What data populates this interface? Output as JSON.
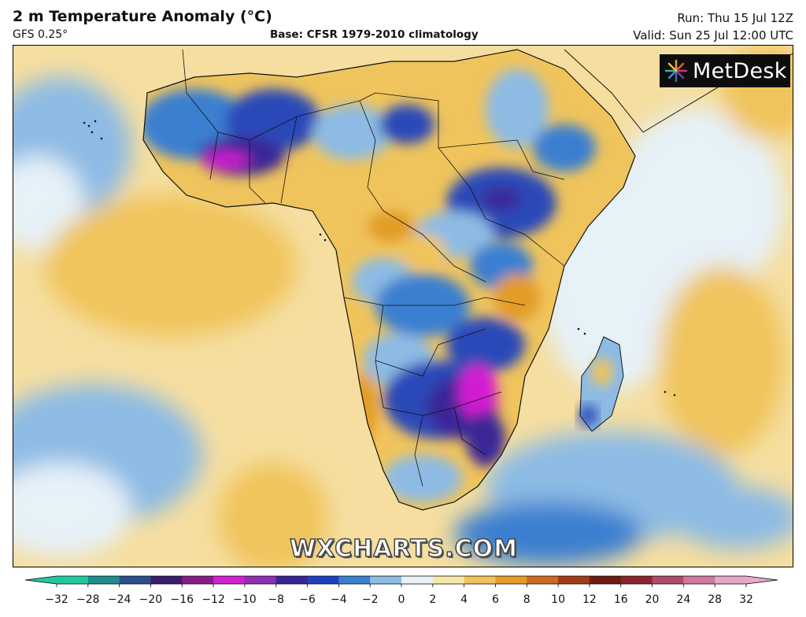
{
  "header": {
    "title": "2 m Temperature Anomaly (°C)",
    "model": "GFS 0.25°",
    "base": "Base: CFSR 1979-2010 climatology",
    "run": "Run: Thu 15 Jul 12Z",
    "valid": "Valid: Sun 25 Jul 12:00 UTC"
  },
  "logo": {
    "text": "MetDesk",
    "icon": "metdesk-burst-icon"
  },
  "watermark": "WXCHARTS.COM",
  "colorbar": {
    "ticks": [
      "−32",
      "−28",
      "−24",
      "−20",
      "−16",
      "−12",
      "−10",
      "−8",
      "−6",
      "−4",
      "−2",
      "0",
      "2",
      "4",
      "6",
      "8",
      "10",
      "12",
      "16",
      "20",
      "24",
      "28",
      "32"
    ],
    "colors": [
      "#22c9a0",
      "#1f8d8a",
      "#2a4f8e",
      "#3a1e6e",
      "#8a1a8a",
      "#d21fd2",
      "#8f2fb3",
      "#3a2598",
      "#2040c0",
      "#3a7fd0",
      "#8dbbe4",
      "#e6f1f8",
      "#f7e8a8",
      "#f2c25a",
      "#e39c28",
      "#cc6a1e",
      "#a23a16",
      "#6e1d10",
      "#8a2530",
      "#b04a6a",
      "#cf78a0",
      "#e6a8c8"
    ],
    "colors_meta": "palette"
  },
  "map_colors": {
    "ocean_warm": "#f5dea0",
    "warm": "#f0c45c",
    "hot": "#e39c28",
    "neutral": "#e6f1f8",
    "cool": "#8dbbe4",
    "cold": "#3a7fd0",
    "colder": "#2a48b8",
    "very_cold": "#3a2598",
    "extreme": "#d21fd2"
  }
}
